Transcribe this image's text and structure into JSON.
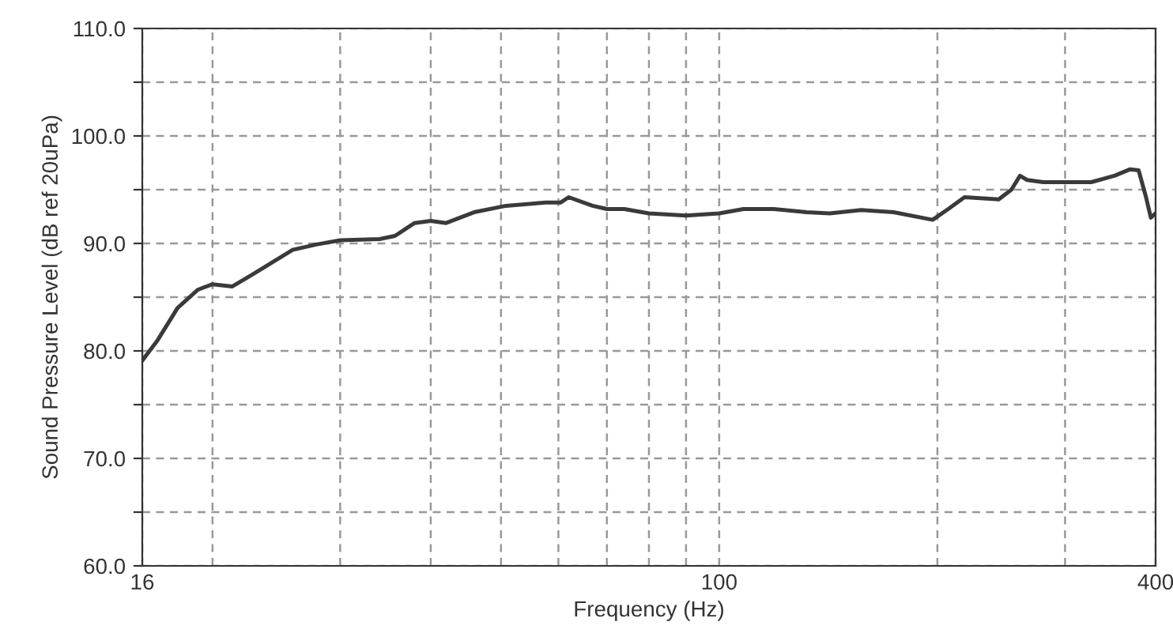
{
  "chart_data": {
    "type": "line",
    "xlabel": "Frequency (Hz)",
    "ylabel": "Sound Pressure Level (dB ref 20uPa)",
    "log": "x",
    "x": [
      16,
      16.8,
      17.9,
      19.1,
      20,
      21.3,
      22.7,
      25.8,
      27.8,
      30,
      34,
      35.7,
      38,
      40,
      42,
      45.9,
      50.8,
      57.6,
      60.4,
      62,
      66.9,
      70,
      74,
      80,
      90,
      100,
      108,
      119,
      132,
      142,
      157,
      174,
      197,
      207,
      218,
      243,
      253,
      260,
      266,
      280,
      326,
      351,
      369,
      379,
      388,
      394,
      400
    ],
    "series": [
      {
        "color": "#3a3a3a",
        "values": [
          79.1,
          81.0,
          84.0,
          85.7,
          86.2,
          86.0,
          87.1,
          89.4,
          89.9,
          90.3,
          90.4,
          90.7,
          91.9,
          92.1,
          91.9,
          92.9,
          93.5,
          93.8,
          93.8,
          94.3,
          93.5,
          93.2,
          93.2,
          92.8,
          92.6,
          92.8,
          93.2,
          93.2,
          92.9,
          92.8,
          93.1,
          92.9,
          92.2,
          93.2,
          94.3,
          94.1,
          95.0,
          96.3,
          95.9,
          95.7,
          95.7,
          96.3,
          96.9,
          96.8,
          94.3,
          92.4,
          92.8
        ]
      }
    ],
    "xlim": [
      16,
      400
    ],
    "ylim": [
      60,
      110
    ],
    "xticks": [
      16,
      {
        "value": 20,
        "label": null
      },
      {
        "value": 30,
        "label": null
      },
      {
        "value": 40,
        "label": null
      },
      {
        "value": 50,
        "label": null
      },
      {
        "value": 60,
        "label": null
      },
      {
        "value": 70,
        "label": null
      },
      {
        "value": 80,
        "label": null
      },
      {
        "value": 90,
        "label": null
      },
      100,
      {
        "value": 200,
        "label": null
      },
      {
        "value": 300,
        "label": null
      },
      400
    ],
    "yticks": [
      {
        "value": 60,
        "label": "60.0"
      },
      {
        "value": 65,
        "label": null
      },
      {
        "value": 70,
        "label": "70.0"
      },
      {
        "value": 75,
        "label": null
      },
      {
        "value": 80,
        "label": "80.0"
      },
      {
        "value": 85,
        "label": null
      },
      {
        "value": 90,
        "label": "90.0"
      },
      {
        "value": 95,
        "label": null
      },
      {
        "value": 100,
        "label": "100.0"
      },
      {
        "value": 105,
        "label": null
      },
      {
        "value": 110,
        "label": "110.0"
      }
    ],
    "grid": true,
    "line_style": "solid",
    "marker": "none"
  }
}
